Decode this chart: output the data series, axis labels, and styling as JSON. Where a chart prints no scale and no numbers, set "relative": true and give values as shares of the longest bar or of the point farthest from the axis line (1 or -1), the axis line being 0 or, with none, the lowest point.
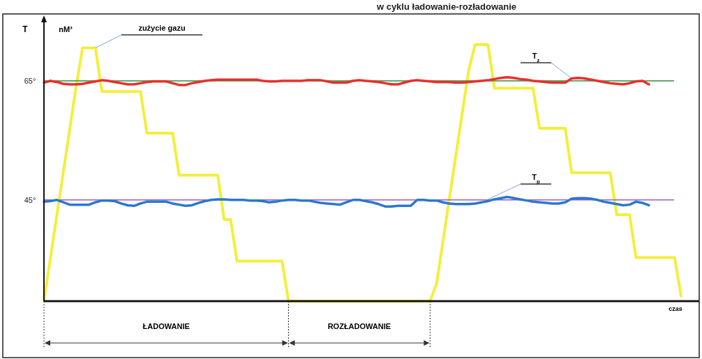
{
  "chart_data": [
    {
      "type": "line",
      "title": "w cyklu ładowanie-rozładowanie",
      "xlabel": "czas",
      "ylabel": "T",
      "categories": [
        null,
        null,
        null,
        null,
        null,
        null,
        null,
        null,
        null,
        null,
        null,
        null,
        null,
        null,
        null,
        null,
        null,
        null,
        null,
        null,
        null,
        null,
        null,
        null,
        null,
        null,
        null,
        null,
        null,
        null,
        null,
        null,
        null,
        null,
        null,
        null,
        null,
        null,
        null,
        null,
        null,
        null,
        null,
        null,
        null,
        null,
        null,
        null,
        null,
        null,
        null,
        null,
        null,
        null,
        null,
        null,
        null,
        null,
        null,
        null,
        null,
        null,
        null,
        null,
        null,
        null,
        null,
        null,
        null,
        null,
        null,
        null,
        null,
        null,
        null,
        null,
        null,
        null,
        null,
        null,
        null,
        null,
        null,
        null,
        null,
        null,
        null,
        null,
        null,
        null,
        null,
        null,
        null,
        null,
        null,
        null,
        null,
        null,
        null,
        null
      ],
      "ylim": [
        28,
        76
      ],
      "yticks": [
        {
          "value": 45,
          "label": "45°"
        },
        {
          "value": 65,
          "label": "65°"
        }
      ],
      "tick_labels": "y",
      "legend": false,
      "marker": "none",
      "line_style": "solid",
      "series": [
        {
          "name": "T$_{z}$",
          "color": "#e8302a",
          "values": [
            64.7,
            65.0,
            64.8,
            64.5,
            64.4,
            64.4,
            64.5,
            64.7,
            64.9,
            65.1,
            65.0,
            64.8,
            64.6,
            64.4,
            64.4,
            64.6,
            64.8,
            64.9,
            64.9,
            64.9,
            64.6,
            64.3,
            64.3,
            64.6,
            64.8,
            65.0,
            65.1,
            65.2,
            65.2,
            65.2,
            65.2,
            65.2,
            65.2,
            65.2,
            65.0,
            64.9,
            64.9,
            65.0,
            65.0,
            65.0,
            65.0,
            65.1,
            65.1,
            65.1,
            64.9,
            64.7,
            64.7,
            64.7,
            65.0,
            65.1,
            65.0,
            64.9,
            64.8,
            64.6,
            64.4,
            64.4,
            64.7,
            65.0,
            65.1,
            65.0,
            64.9,
            64.8,
            64.8,
            64.8,
            64.7,
            64.7,
            64.8,
            64.9,
            65.0,
            65.1,
            65.3,
            65.5,
            65.6,
            65.5,
            65.3,
            65.2,
            65.0,
            64.9,
            64.8,
            64.7,
            64.7,
            64.7,
            65.4,
            65.5,
            65.4,
            65.2,
            65.0,
            64.8,
            64.6,
            64.5,
            64.4,
            64.6,
            64.9,
            65.0,
            64.4,
            null,
            null,
            null,
            null,
            null
          ]
        },
        {
          "name": "T$_{p}$",
          "color": "#2a78d0",
          "values": [
            44.7,
            44.8,
            45.0,
            44.6,
            44.2,
            44.2,
            44.2,
            44.2,
            44.6,
            44.9,
            44.9,
            44.8,
            44.4,
            44.1,
            44.0,
            44.4,
            44.7,
            44.7,
            44.7,
            44.7,
            44.4,
            44.2,
            44.0,
            44.1,
            44.5,
            44.8,
            45.0,
            45.1,
            45.1,
            45.0,
            45.0,
            45.0,
            44.9,
            44.9,
            44.8,
            44.6,
            44.7,
            44.9,
            45.0,
            45.0,
            44.9,
            44.9,
            44.7,
            44.5,
            44.4,
            44.3,
            44.2,
            44.6,
            45.0,
            45.0,
            44.8,
            44.6,
            44.3,
            43.9,
            43.9,
            44.0,
            44.0,
            44.0,
            45.0,
            45.0,
            44.9,
            44.9,
            44.6,
            44.4,
            44.3,
            44.3,
            44.3,
            44.4,
            44.6,
            44.8,
            45.1,
            45.3,
            45.5,
            45.3,
            45.1,
            44.9,
            44.7,
            44.6,
            44.5,
            44.4,
            44.4,
            44.6,
            45.2,
            45.3,
            45.3,
            45.2,
            45.0,
            44.7,
            44.5,
            44.3,
            44.1,
            44.2,
            44.7,
            44.5,
            44.1,
            null,
            null,
            null,
            null,
            null
          ]
        }
      ],
      "ref_lines": [
        {
          "axis": "y",
          "value": 65,
          "label": null,
          "color": "#2e8b3e"
        },
        {
          "axis": "y",
          "value": 45,
          "label": null,
          "color": "#a05ac0"
        }
      ]
    },
    {
      "type": "line",
      "relative": true,
      "ylabel": "nM³",
      "tick_labels": false,
      "legend": false,
      "marker": "none",
      "line_style": "solid",
      "categories": [
        null,
        null,
        null,
        null,
        null,
        null,
        null,
        null,
        null,
        null,
        null,
        null,
        null,
        null,
        null,
        null,
        null,
        null,
        null,
        null,
        null,
        null,
        null,
        null,
        null,
        null,
        null,
        null,
        null,
        null,
        null,
        null,
        null,
        null,
        null,
        null,
        null,
        null,
        null,
        null,
        null,
        null,
        null,
        null,
        null,
        null,
        null,
        null,
        null,
        null,
        null,
        null,
        null,
        null,
        null,
        null,
        null,
        null,
        null,
        null,
        null,
        null,
        null,
        null,
        null,
        null,
        null,
        null,
        null,
        null,
        null,
        null,
        null,
        null,
        null,
        null,
        null,
        null,
        null,
        null,
        null,
        null,
        null,
        null,
        null,
        null,
        null,
        null,
        null,
        null,
        null,
        null,
        null,
        null,
        null,
        null,
        null,
        null,
        null,
        null
      ],
      "series": [
        {
          "name": "zużycie gazu",
          "color": "#f4ee3c",
          "values": [
            0,
            0.167,
            0.335,
            0.502,
            0.669,
            0.837,
            0.987,
            0.987,
            0.987,
            0.817,
            0.817,
            0.817,
            0.817,
            0.817,
            0.817,
            0.817,
            0.655,
            0.655,
            0.655,
            0.655,
            0.655,
            0.491,
            0.491,
            0.491,
            0.491,
            0.491,
            0.491,
            0.491,
            0.318,
            0.318,
            0.156,
            0.156,
            0.156,
            0.156,
            0.156,
            0.156,
            0.156,
            0.156,
            0,
            0,
            0,
            0,
            0,
            0,
            0,
            0,
            0,
            0,
            0,
            0,
            0,
            0,
            0,
            0,
            0,
            0,
            0,
            0,
            0,
            0,
            0,
            0.067,
            0.233,
            0.4,
            0.567,
            0.733,
            0.9,
            1,
            1,
            1,
            0.83,
            0.83,
            0.83,
            0.83,
            0.83,
            0.83,
            0.83,
            0.674,
            0.674,
            0.674,
            0.674,
            0.674,
            0.501,
            0.501,
            0.501,
            0.501,
            0.501,
            0.501,
            0.501,
            0.337,
            0.337,
            0.337,
            0.17,
            0.17,
            0.17,
            0.17,
            0.17,
            0.17,
            0.17,
            0.019
          ]
        }
      ],
      "annotations": [
        "ŁADOWANIE",
        "ROZŁADOWANIE"
      ]
    }
  ]
}
